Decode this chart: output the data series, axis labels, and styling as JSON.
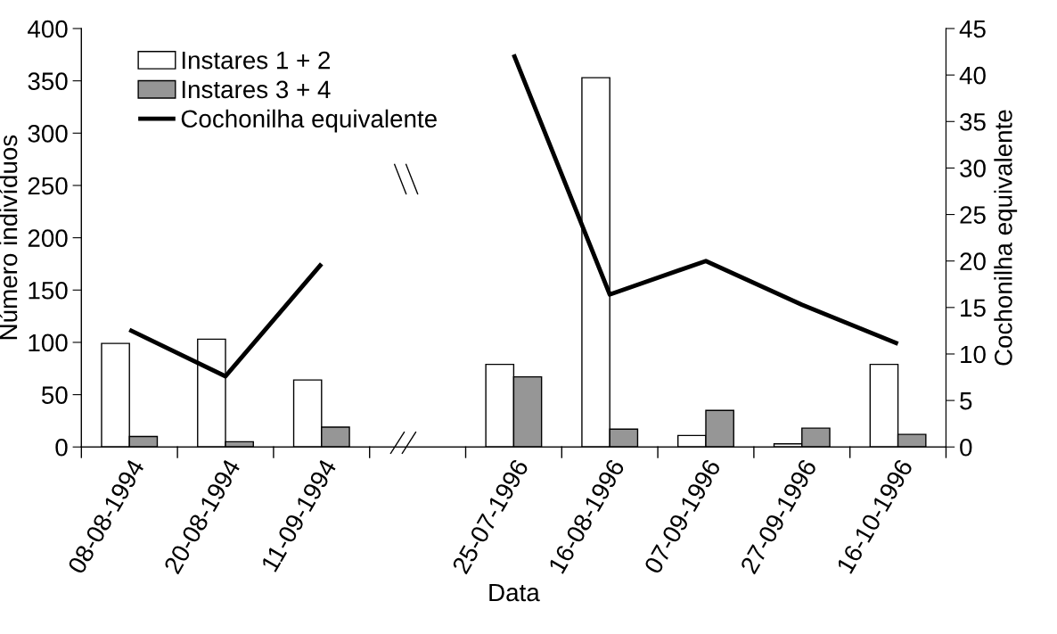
{
  "chart_data": {
    "type": "bar",
    "xlabel": "Data",
    "ylabel": "Número indivíduos",
    "y2label": "Cochonilha equivalente",
    "categories": [
      "08-08-1994",
      "20-08-1994",
      "11-09-1994",
      null,
      "25-07-1996",
      "16-08-1996",
      "07-09-1996",
      "27-09-1996",
      "16-10-1996"
    ],
    "series": [
      {
        "name": "Instares 1 + 2",
        "color": "#ffffff",
        "values": [
          99,
          103,
          64,
          null,
          79,
          353,
          11,
          3,
          79
        ]
      },
      {
        "name": "Instares 3 + 4",
        "color": "#969696",
        "values": [
          10,
          5,
          19,
          null,
          67,
          17,
          35,
          18,
          12
        ]
      },
      {
        "name": "Cochonilha equivalente",
        "type": "line",
        "axis": "y2",
        "color": "#000000",
        "values": [
          12.6,
          7.6,
          19.7,
          null,
          42.2,
          16.4,
          20.0,
          15.3,
          11.1
        ]
      }
    ],
    "ylim": [
      0,
      400
    ],
    "yticks": [
      0,
      50,
      100,
      150,
      200,
      250,
      300,
      350,
      400
    ],
    "y2lim": [
      0,
      45
    ],
    "y2ticks": [
      0,
      5,
      10,
      15,
      20,
      25,
      30,
      35,
      40,
      45
    ],
    "legend": "top left",
    "grid": false,
    "line_style": "solid",
    "marker": "none"
  }
}
